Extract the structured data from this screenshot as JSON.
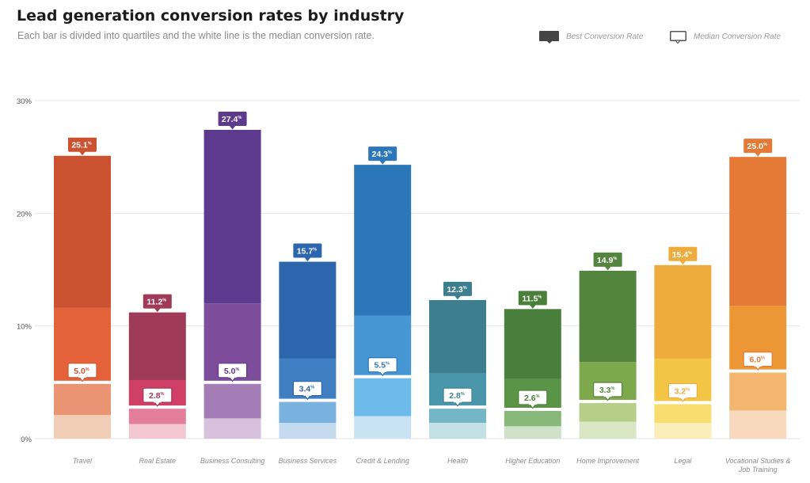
{
  "header": {
    "title": "Lead generation conversion rates by industry",
    "subtitle": "Each bar is divided into quartiles and the white line is the median conversion rate."
  },
  "legend": {
    "best_label": "Best Conversion Rate",
    "median_label": "Median Conversion Rate"
  },
  "chart_data": {
    "type": "bar",
    "title": "Lead generation conversion rates by industry",
    "subtitle": "Each bar is divided into quartiles and the white line is the median conversion rate.",
    "xlabel": "",
    "ylabel": "",
    "ylim": [
      0,
      30
    ],
    "yticks": [
      0,
      10,
      20,
      30
    ],
    "ytick_labels": [
      "0%",
      "10%",
      "20%",
      "30%"
    ],
    "grid": true,
    "legend_position": "top-right",
    "label_suffix": "%",
    "categories": [
      {
        "name": "Travel",
        "label_lines": [
          "Travel"
        ],
        "quartiles": [
          2.1,
          5.0,
          11.6,
          25.1
        ],
        "median": 5.0,
        "best": 25.1,
        "best_label": "25.1",
        "median_label": "5.0",
        "colors": [
          "#f2cdb6",
          "#ea9473",
          "#e5613a",
          "#cb5230"
        ]
      },
      {
        "name": "Real Estate",
        "label_lines": [
          "Real Estate"
        ],
        "quartiles": [
          1.3,
          2.8,
          5.2,
          11.2
        ],
        "median": 2.8,
        "best": 11.2,
        "best_label": "11.2",
        "median_label": "2.8",
        "colors": [
          "#f2c7d2",
          "#e47f9b",
          "#d03f66",
          "#a03a5a"
        ]
      },
      {
        "name": "Business Consulting",
        "label_lines": [
          "Business Consulting"
        ],
        "quartiles": [
          1.8,
          5.0,
          12.0,
          27.4
        ],
        "median": 5.0,
        "best": 27.4,
        "best_label": "27.4",
        "median_label": "5.0",
        "colors": [
          "#d8c1dd",
          "#a57db6",
          "#7d4d9b",
          "#5e3a8e"
        ]
      },
      {
        "name": "Business Services",
        "label_lines": [
          "Business Services"
        ],
        "quartiles": [
          1.4,
          3.4,
          7.1,
          15.7
        ],
        "median": 3.4,
        "best": 15.7,
        "best_label": "15.7",
        "median_label": "3.4",
        "colors": [
          "#c4dbef",
          "#7ab2df",
          "#3f7fc2",
          "#2e66ae"
        ]
      },
      {
        "name": "Credit & Lending",
        "label_lines": [
          "Credit & Lending"
        ],
        "quartiles": [
          2.0,
          5.5,
          10.9,
          24.3
        ],
        "median": 5.5,
        "best": 24.3,
        "best_label": "24.3",
        "median_label": "5.5",
        "colors": [
          "#c9e3f5",
          "#6dbbea",
          "#4596d2",
          "#2c76ba"
        ]
      },
      {
        "name": "Health",
        "label_lines": [
          "Health"
        ],
        "quartiles": [
          1.4,
          2.8,
          5.8,
          12.3
        ],
        "median": 2.8,
        "best": 12.3,
        "best_label": "12.3",
        "median_label": "2.8",
        "colors": [
          "#c4e1e6",
          "#72b6c8",
          "#4a97ab",
          "#3e7f8f"
        ]
      },
      {
        "name": "Higher Education",
        "label_lines": [
          "Higher Education"
        ],
        "quartiles": [
          1.1,
          2.6,
          5.3,
          11.5
        ],
        "median": 2.6,
        "best": 11.5,
        "best_label": "11.5",
        "median_label": "2.6",
        "colors": [
          "#cfe2c9",
          "#89b97a",
          "#5a9447",
          "#4a7f3b"
        ]
      },
      {
        "name": "Home Improvement",
        "label_lines": [
          "Home Improvement"
        ],
        "quartiles": [
          1.5,
          3.3,
          6.8,
          14.9
        ],
        "median": 3.3,
        "best": 14.9,
        "best_label": "14.9",
        "median_label": "3.3",
        "colors": [
          "#d9e7c6",
          "#b5cf88",
          "#7da94c",
          "#54853f"
        ]
      },
      {
        "name": "Legal",
        "label_lines": [
          "Legal"
        ],
        "quartiles": [
          1.4,
          3.2,
          7.1,
          15.4
        ],
        "median": 3.2,
        "best": 15.4,
        "best_label": "15.4",
        "median_label": "3.2",
        "colors": [
          "#fbeeb9",
          "#f7dc6e",
          "#f3c545",
          "#efac3e"
        ]
      },
      {
        "name": "Vocational Studies & Job Training",
        "label_lines": [
          "Vocational Studies &",
          "Job Training"
        ],
        "quartiles": [
          2.5,
          6.0,
          11.8,
          25.0
        ],
        "median": 6.0,
        "best": 25.0,
        "best_label": "25.0",
        "median_label": "6.0",
        "colors": [
          "#f8d9bd",
          "#f4b56f",
          "#ec9636",
          "#e57a36"
        ]
      }
    ]
  }
}
